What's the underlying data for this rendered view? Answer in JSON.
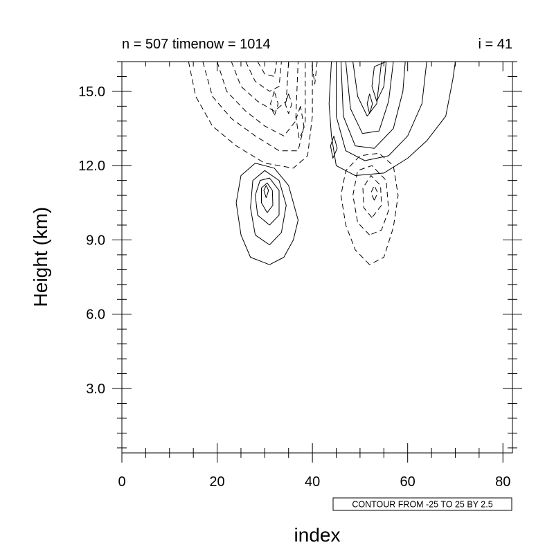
{
  "chart_data": {
    "type": "contour",
    "title_left": "n = 507  timenow = 1014",
    "title_right": "i = 41",
    "xlabel": "index",
    "ylabel": "Height (km)",
    "xlim": [
      0,
      82
    ],
    "ylim": [
      0.4,
      16.2
    ],
    "x_ticks": [
      0,
      20,
      40,
      60,
      80
    ],
    "x_tick_labels": [
      "0",
      "20",
      "40",
      "60",
      "80"
    ],
    "x_minor_step": 5,
    "y_ticks": [
      3,
      6,
      9,
      12,
      15
    ],
    "y_tick_labels": [
      "3.0",
      "6.0",
      "9.0",
      "12.0",
      "15.0"
    ],
    "y_minor_step": 0.6,
    "grid": false,
    "contour_info": "CONTOUR FROM -25 TO 25 BY 2.5",
    "colors": {
      "line": "#000000",
      "background": "#ffffff"
    },
    "contours": [
      {
        "sign": "positive",
        "points": [
          [
            31,
            8.0
          ],
          [
            27,
            8.3
          ],
          [
            25,
            9.2
          ],
          [
            24,
            10.5
          ],
          [
            25,
            11.6
          ],
          [
            28,
            12.1
          ],
          [
            32,
            11.9
          ],
          [
            35,
            11.2
          ],
          [
            37,
            9.8
          ],
          [
            36,
            9.0
          ],
          [
            34,
            8.3
          ],
          [
            31,
            8.0
          ]
        ]
      },
      {
        "sign": "positive",
        "points": [
          [
            31,
            8.8
          ],
          [
            28,
            9.2
          ],
          [
            27,
            10.3
          ],
          [
            27.5,
            11.4
          ],
          [
            30,
            11.8
          ],
          [
            33,
            11.4
          ],
          [
            34.5,
            10.4
          ],
          [
            33.5,
            9.3
          ],
          [
            31,
            8.8
          ]
        ]
      },
      {
        "sign": "positive",
        "points": [
          [
            31,
            9.6
          ],
          [
            28.5,
            10.0
          ],
          [
            28,
            10.8
          ],
          [
            29,
            11.4
          ],
          [
            31,
            11.5
          ],
          [
            33,
            11.0
          ],
          [
            33,
            10.0
          ],
          [
            31,
            9.6
          ]
        ]
      },
      {
        "sign": "positive",
        "points": [
          [
            30.5,
            10.1
          ],
          [
            29.3,
            10.5
          ],
          [
            29.3,
            11.1
          ],
          [
            30.5,
            11.3
          ],
          [
            31.6,
            11.0
          ],
          [
            31.7,
            10.4
          ],
          [
            30.5,
            10.1
          ]
        ]
      },
      {
        "sign": "positive",
        "points": [
          [
            30.3,
            10.7
          ],
          [
            29.8,
            11.0
          ],
          [
            30.3,
            11.2
          ],
          [
            30.8,
            11.0
          ],
          [
            30.3,
            10.7
          ]
        ]
      },
      {
        "sign": "positive",
        "points": [
          [
            44,
            16.2
          ],
          [
            43.5,
            14.5
          ],
          [
            44,
            13.2
          ],
          [
            45,
            12.0
          ],
          [
            49,
            11.6
          ],
          [
            55,
            11.7
          ],
          [
            60,
            12.3
          ],
          [
            64,
            13.0
          ],
          [
            68,
            14.0
          ],
          [
            69.5,
            15.5
          ],
          [
            70,
            16.2
          ]
        ]
      },
      {
        "sign": "positive",
        "points": [
          [
            45,
            16.2
          ],
          [
            45,
            14.0
          ],
          [
            47,
            12.6
          ],
          [
            51,
            12.2
          ],
          [
            56,
            12.4
          ],
          [
            60,
            13.2
          ],
          [
            63,
            14.5
          ],
          [
            64,
            16.2
          ]
        ]
      },
      {
        "sign": "positive",
        "points": [
          [
            46,
            16.2
          ],
          [
            46.5,
            14.0
          ],
          [
            49,
            12.8
          ],
          [
            53,
            12.7
          ],
          [
            57,
            13.5
          ],
          [
            59,
            15.0
          ],
          [
            59.5,
            16.2
          ]
        ]
      },
      {
        "sign": "positive",
        "points": [
          [
            47,
            16.2
          ],
          [
            48,
            14.3
          ],
          [
            50.5,
            13.3
          ],
          [
            54,
            13.4
          ],
          [
            56,
            14.6
          ],
          [
            57,
            16.2
          ]
        ]
      },
      {
        "sign": "positive",
        "points": [
          [
            48.5,
            16.2
          ],
          [
            49.5,
            14.8
          ],
          [
            51.5,
            14.0
          ],
          [
            53.5,
            14.5
          ],
          [
            54.5,
            16.2
          ]
        ]
      },
      {
        "sign": "positive",
        "points": [
          [
            53,
            16.0
          ],
          [
            52.5,
            15.2
          ],
          [
            53.5,
            14.6
          ],
          [
            55,
            15.2
          ],
          [
            55.5,
            16.2
          ],
          [
            53,
            16.0
          ]
        ]
      },
      {
        "sign": "positive",
        "points": [
          [
            52,
            14.9
          ],
          [
            51.5,
            14.5
          ],
          [
            52,
            14.1
          ],
          [
            52.6,
            14.5
          ],
          [
            52,
            14.9
          ]
        ]
      },
      {
        "sign": "positive",
        "points": [
          [
            44.5,
            13.2
          ],
          [
            43.8,
            12.8
          ],
          [
            44.3,
            12.3
          ],
          [
            45.2,
            12.7
          ],
          [
            44.5,
            13.2
          ]
        ]
      },
      {
        "sign": "negative",
        "points": [
          [
            52,
            8.0
          ],
          [
            49,
            8.6
          ],
          [
            47,
            9.6
          ],
          [
            46,
            10.8
          ],
          [
            47,
            11.8
          ],
          [
            50,
            12.4
          ],
          [
            54,
            12.5
          ],
          [
            57,
            12.0
          ],
          [
            58,
            10.8
          ],
          [
            57,
            9.5
          ],
          [
            55,
            8.3
          ],
          [
            52,
            8.0
          ]
        ]
      },
      {
        "sign": "negative",
        "points": [
          [
            52,
            9.2
          ],
          [
            49.5,
            9.7
          ],
          [
            48.5,
            10.8
          ],
          [
            49.5,
            11.8
          ],
          [
            52.5,
            12.0
          ],
          [
            55.5,
            11.4
          ],
          [
            56,
            10.2
          ],
          [
            54.5,
            9.4
          ],
          [
            52,
            9.2
          ]
        ]
      },
      {
        "sign": "negative",
        "points": [
          [
            52.5,
            9.9
          ],
          [
            50.8,
            10.3
          ],
          [
            50.6,
            11.1
          ],
          [
            52.3,
            11.6
          ],
          [
            54.3,
            11.2
          ],
          [
            54.5,
            10.4
          ],
          [
            52.5,
            9.9
          ]
        ]
      },
      {
        "sign": "negative",
        "points": [
          [
            53,
            10.6
          ],
          [
            52.3,
            10.9
          ],
          [
            53,
            11.2
          ],
          [
            53.7,
            10.9
          ],
          [
            53,
            10.6
          ]
        ]
      },
      {
        "sign": "negative",
        "points": [
          [
            14,
            16.2
          ],
          [
            15.5,
            14.8
          ],
          [
            19,
            13.6
          ],
          [
            24,
            12.8
          ],
          [
            30,
            12.1
          ],
          [
            36,
            11.9
          ],
          [
            39,
            12.4
          ],
          [
            40,
            14.0
          ],
          [
            40,
            16.2
          ]
        ]
      },
      {
        "sign": "negative",
        "points": [
          [
            17,
            16.2
          ],
          [
            19,
            14.8
          ],
          [
            23,
            13.9
          ],
          [
            28,
            13.2
          ],
          [
            33,
            12.6
          ],
          [
            37,
            12.6
          ],
          [
            38.5,
            13.8
          ],
          [
            38.5,
            16.2
          ]
        ]
      },
      {
        "sign": "negative",
        "points": [
          [
            20,
            16.2
          ],
          [
            22,
            15.0
          ],
          [
            26,
            14.2
          ],
          [
            30,
            13.6
          ],
          [
            34,
            13.2
          ],
          [
            36.5,
            13.8
          ],
          [
            37,
            16.2
          ]
        ]
      },
      {
        "sign": "negative",
        "points": [
          [
            23,
            16.2
          ],
          [
            25,
            15.2
          ],
          [
            28.5,
            14.6
          ],
          [
            32,
            14.2
          ],
          [
            34.5,
            14.6
          ],
          [
            35,
            16.2
          ]
        ]
      },
      {
        "sign": "negative",
        "points": [
          [
            26,
            16.2
          ],
          [
            28,
            15.4
          ],
          [
            31,
            15.0
          ],
          [
            33,
            15.2
          ],
          [
            33.5,
            16.2
          ]
        ]
      },
      {
        "sign": "negative",
        "points": [
          [
            28.5,
            16.2
          ],
          [
            30,
            15.7
          ],
          [
            32,
            15.6
          ],
          [
            32.5,
            16.2
          ]
        ]
      },
      {
        "sign": "negative",
        "points": [
          [
            32,
            15.0
          ],
          [
            31.2,
            14.5
          ],
          [
            32,
            14.0
          ],
          [
            32.8,
            14.5
          ],
          [
            32,
            15.0
          ]
        ]
      },
      {
        "sign": "negative",
        "points": [
          [
            37.5,
            14.4
          ],
          [
            36.6,
            13.9
          ],
          [
            37.2,
            13.1
          ],
          [
            38.3,
            13.5
          ],
          [
            37.5,
            14.4
          ]
        ]
      },
      {
        "sign": "negative",
        "points": [
          [
            35,
            14.9
          ],
          [
            34.3,
            14.5
          ],
          [
            35,
            14.1
          ],
          [
            35.7,
            14.5
          ],
          [
            35,
            14.9
          ]
        ]
      },
      {
        "sign": "negative",
        "points": [
          [
            41,
            16.2
          ],
          [
            40.5,
            15.3
          ],
          [
            39.8,
            16.2
          ]
        ]
      }
    ]
  }
}
